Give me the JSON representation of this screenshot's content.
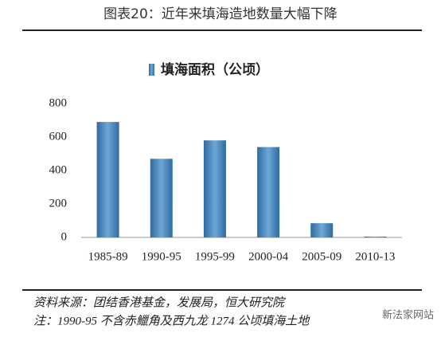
{
  "chart_data": {
    "type": "bar",
    "title": "图表20：近年来填海造地数量大幅下降",
    "legend": "填海面积（公顷）",
    "categories": [
      "1985-89",
      "1990-95",
      "1995-99",
      "2000-04",
      "2005-09",
      "2010-13"
    ],
    "series": [
      {
        "name": "填海面积（公顷）",
        "color": "#3f81b9",
        "values": [
          690,
          470,
          580,
          540,
          85,
          5
        ]
      }
    ],
    "ylim": [
      0,
      800
    ],
    "yticks": [
      0,
      200,
      400,
      600,
      800
    ],
    "grid": false,
    "source": "资料来源：团结香港基金，发展局，恒大研究院",
    "note": "注：1990-95 不含赤鱲角及西九龙 1274 公顷填海土地",
    "watermark": "新法家网站"
  }
}
